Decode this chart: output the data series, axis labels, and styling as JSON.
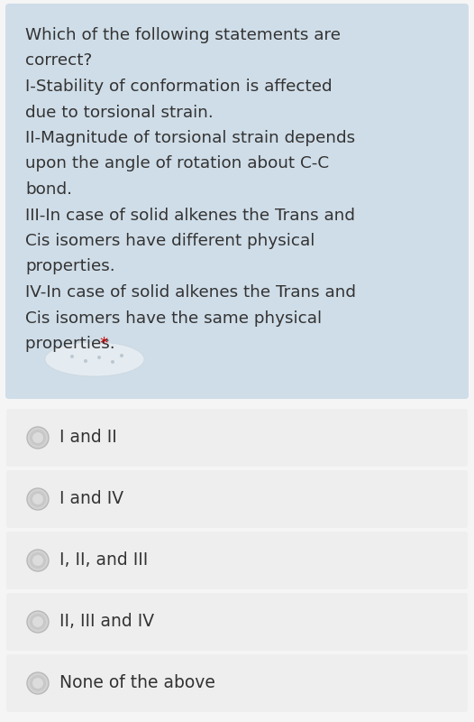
{
  "question_bg_color": "#cfdde8",
  "option_bg_color": "#eeeeee",
  "page_bg_color": "#f5f5f5",
  "text_color": "#333333",
  "star_color": "#cc0000",
  "q_lines": [
    "Which of the following statements are",
    "correct?",
    "I-Stability of conformation is affected",
    "due to torsional strain.",
    "II-Magnitude of torsional strain depends",
    "upon the angle of rotation about C-C",
    "bond.",
    "III-In case of solid alkenes the Trans and",
    "Cis isomers have different physical",
    "properties.",
    "IV-In case of solid alkenes the Trans and",
    "Cis isomers have the same physical",
    "properties."
  ],
  "options": [
    "I and II",
    "I and IV",
    "I, II, and III",
    "II, III and IV",
    "None of the above"
  ],
  "question_font_size": 13.2,
  "option_font_size": 13.5,
  "fig_width": 5.26,
  "fig_height": 8.0,
  "dpi": 100
}
